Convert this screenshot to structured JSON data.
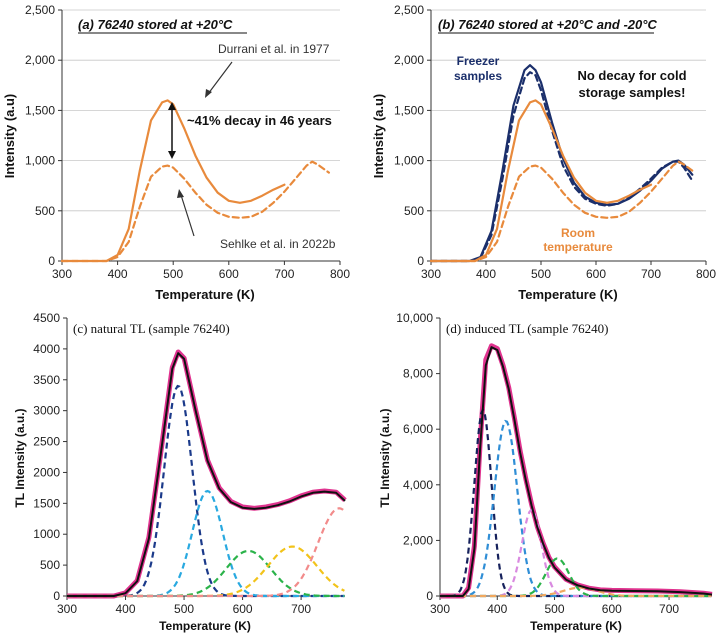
{
  "chart_data": [
    {
      "id": "a",
      "type": "line",
      "title": "(a) 76240 stored at +20°C",
      "xlabel": "Temperature (K)",
      "ylabel": "Intensity (a.u)",
      "xlim": [
        300,
        800
      ],
      "ylim": [
        0,
        2500
      ],
      "xticks": [
        "300",
        "400",
        "500",
        "600",
        "700",
        "800"
      ],
      "yticks": [
        "0",
        "500",
        "1,000",
        "1,500",
        "2,000",
        "2,500"
      ],
      "grid": true,
      "annotations": [
        "Durrani et al. in 1977",
        "~41% decay in 46 years",
        "Sehlke et al. in 2022b"
      ],
      "series": [
        {
          "name": "Durrani et al. in 1977",
          "color": "#e88a3c",
          "dashed": false,
          "x": [
            300,
            380,
            400,
            420,
            440,
            460,
            480,
            490,
            500,
            520,
            540,
            560,
            580,
            600,
            620,
            640,
            660,
            680,
            700
          ],
          "y": [
            0,
            0,
            60,
            320,
            900,
            1400,
            1580,
            1600,
            1560,
            1320,
            1050,
            830,
            680,
            600,
            580,
            600,
            650,
            710,
            760
          ]
        },
        {
          "name": "Sehlke et al. in 2022b",
          "color": "#e88a3c",
          "dashed": true,
          "x": [
            300,
            380,
            400,
            420,
            440,
            460,
            480,
            490,
            500,
            520,
            540,
            560,
            580,
            600,
            620,
            640,
            660,
            680,
            700,
            720,
            740,
            750,
            760,
            780
          ],
          "y": [
            0,
            0,
            40,
            190,
            540,
            840,
            940,
            950,
            930,
            820,
            680,
            560,
            480,
            440,
            430,
            440,
            490,
            580,
            690,
            820,
            950,
            990,
            960,
            880
          ]
        }
      ]
    },
    {
      "id": "b",
      "type": "line",
      "title": "(b) 76240 stored at +20°C and -20°C",
      "xlabel": "Temperature (K)",
      "ylabel": "Intensity (a.u)",
      "xlim": [
        300,
        800
      ],
      "ylim": [
        0,
        2500
      ],
      "xticks": [
        "300",
        "400",
        "500",
        "600",
        "700",
        "800"
      ],
      "yticks": [
        "0",
        "500",
        "1,000",
        "1,500",
        "2,000",
        "2,500"
      ],
      "grid": true,
      "annotations": [
        "Freezer",
        "samples",
        "No decay for cold",
        "storage samples!",
        "Room",
        "temperature"
      ],
      "series": [
        {
          "name": "Freezer samples (solid)",
          "color": "#1b2f6b",
          "dashed": false,
          "x": [
            300,
            370,
            390,
            410,
            430,
            450,
            470,
            480,
            490,
            500,
            520,
            540,
            560,
            580,
            600,
            620,
            640,
            660,
            680,
            700,
            720,
            740,
            750,
            760,
            775
          ],
          "y": [
            0,
            0,
            40,
            300,
            900,
            1550,
            1900,
            1950,
            1900,
            1780,
            1380,
            1020,
            780,
            640,
            580,
            560,
            570,
            620,
            700,
            800,
            920,
            990,
            1000,
            960,
            860
          ]
        },
        {
          "name": "Freezer samples (dashed)",
          "color": "#1b2f6b",
          "dashed": true,
          "x": [
            300,
            370,
            390,
            410,
            430,
            450,
            470,
            480,
            490,
            500,
            520,
            540,
            560,
            580,
            600,
            620,
            640,
            660,
            680,
            700,
            720,
            740,
            750,
            760,
            775
          ],
          "y": [
            0,
            0,
            30,
            260,
            820,
            1450,
            1820,
            1880,
            1850,
            1700,
            1300,
            950,
            740,
            620,
            570,
            550,
            570,
            630,
            720,
            820,
            930,
            990,
            990,
            930,
            800
          ]
        },
        {
          "name": "Room temperature (solid)",
          "color": "#e88a3c",
          "dashed": false,
          "x": [
            300,
            380,
            400,
            420,
            440,
            460,
            480,
            490,
            500,
            520,
            540,
            560,
            580,
            600,
            620,
            640,
            660,
            680,
            700
          ],
          "y": [
            0,
            0,
            60,
            320,
            900,
            1400,
            1580,
            1600,
            1560,
            1320,
            1050,
            830,
            680,
            600,
            580,
            600,
            650,
            710,
            760
          ]
        },
        {
          "name": "Room temperature (dashed)",
          "color": "#e88a3c",
          "dashed": true,
          "x": [
            300,
            380,
            400,
            420,
            440,
            460,
            480,
            490,
            500,
            520,
            540,
            560,
            580,
            600,
            620,
            640,
            660,
            680,
            700,
            720,
            740,
            750,
            760,
            780
          ],
          "y": [
            0,
            0,
            40,
            190,
            540,
            840,
            940,
            950,
            930,
            820,
            680,
            560,
            480,
            440,
            430,
            440,
            490,
            580,
            690,
            820,
            950,
            990,
            960,
            880
          ]
        }
      ]
    },
    {
      "id": "c",
      "type": "line",
      "title": "(c) natural TL (sample 76240)",
      "xlabel": "Temperature (K)",
      "ylabel": "TL Intensity (a.u.)",
      "xlim": [
        300,
        775
      ],
      "ylim": [
        0,
        4500
      ],
      "xticks": [
        "300",
        "400",
        "500",
        "600",
        "700"
      ],
      "yticks": [
        "0",
        "500",
        "1000",
        "1500",
        "2000",
        "2500",
        "3000",
        "3500",
        "4000",
        "4500"
      ],
      "grid": false,
      "measured": {
        "name": "measured",
        "color": "#e0338f",
        "x": [
          300,
          380,
          400,
          420,
          440,
          460,
          480,
          490,
          500,
          520,
          540,
          560,
          580,
          600,
          620,
          640,
          660,
          680,
          700,
          720,
          740,
          760,
          775
        ],
        "y": [
          0,
          0,
          50,
          250,
          950,
          2300,
          3700,
          3950,
          3850,
          3000,
          2200,
          1750,
          1530,
          1440,
          1420,
          1440,
          1480,
          1540,
          1620,
          1680,
          1700,
          1680,
          1550
        ]
      },
      "fit": {
        "name": "fit",
        "color": "#111111",
        "x": [
          300,
          380,
          400,
          420,
          440,
          460,
          480,
          490,
          500,
          520,
          540,
          560,
          580,
          600,
          620,
          640,
          660,
          680,
          700,
          720,
          740,
          760,
          775
        ],
        "y": [
          0,
          0,
          45,
          240,
          930,
          2280,
          3680,
          3930,
          3840,
          2990,
          2190,
          1740,
          1520,
          1430,
          1410,
          1430,
          1470,
          1530,
          1610,
          1670,
          1690,
          1670,
          1540
        ]
      },
      "components": [
        {
          "color": "#1b3a8a",
          "center": 490,
          "peak": 3400,
          "sigma": 24
        },
        {
          "color": "#29a9e0",
          "center": 540,
          "peak": 1700,
          "sigma": 26
        },
        {
          "color": "#2bb34a",
          "center": 610,
          "peak": 730,
          "sigma": 38
        },
        {
          "color": "#f2c31a",
          "center": 685,
          "peak": 800,
          "sigma": 42
        },
        {
          "color": "#f28b8b",
          "center": 765,
          "peak": 1420,
          "sigma": 36
        }
      ]
    },
    {
      "id": "d",
      "type": "line",
      "title": "(d) induced TL (sample 76240)",
      "xlabel": "Temperature (K)",
      "ylabel": "TL Intensity (a.u.)",
      "xlim": [
        300,
        775
      ],
      "ylim": [
        0,
        10000
      ],
      "xticks": [
        "300",
        "400",
        "500",
        "600",
        "700"
      ],
      "yticks": [
        "0",
        "2,000",
        "4,000",
        "6,000",
        "8,000",
        "10,000"
      ],
      "grid": false,
      "measured": {
        "name": "measured",
        "color": "#e0338f",
        "x": [
          300,
          340,
          350,
          360,
          370,
          380,
          390,
          400,
          410,
          420,
          430,
          440,
          450,
          460,
          470,
          480,
          490,
          500,
          520,
          540,
          560,
          580,
          600,
          640,
          680,
          720,
          760,
          775
        ],
        "y": [
          0,
          0,
          300,
          1800,
          5500,
          8500,
          9000,
          8900,
          8300,
          7500,
          6400,
          5200,
          4200,
          3300,
          2500,
          1900,
          1400,
          1050,
          600,
          400,
          280,
          220,
          200,
          190,
          180,
          150,
          100,
          60
        ]
      },
      "fit": {
        "name": "fit",
        "color": "#111111",
        "x": [
          300,
          340,
          350,
          360,
          370,
          380,
          390,
          400,
          410,
          420,
          430,
          440,
          450,
          460,
          470,
          480,
          490,
          500,
          520,
          540,
          560,
          580,
          600,
          640,
          680,
          720,
          760,
          775
        ],
        "y": [
          0,
          0,
          250,
          1700,
          5300,
          8300,
          8950,
          8850,
          8250,
          7450,
          6350,
          5150,
          4150,
          3250,
          2480,
          1880,
          1380,
          1030,
          590,
          390,
          270,
          210,
          190,
          180,
          170,
          140,
          90,
          50
        ]
      },
      "components": [
        {
          "color": "#16215c",
          "center": 375,
          "peak": 6700,
          "sigma": 15
        },
        {
          "color": "#2f8ed6",
          "center": 415,
          "peak": 6300,
          "sigma": 20
        },
        {
          "color": "#d98ae0",
          "center": 460,
          "peak": 3100,
          "sigma": 17
        },
        {
          "color": "#2bb34a",
          "center": 505,
          "peak": 1350,
          "sigma": 20
        },
        {
          "color": "#f0a860",
          "center": 545,
          "peak": 300,
          "sigma": 30
        }
      ]
    }
  ]
}
